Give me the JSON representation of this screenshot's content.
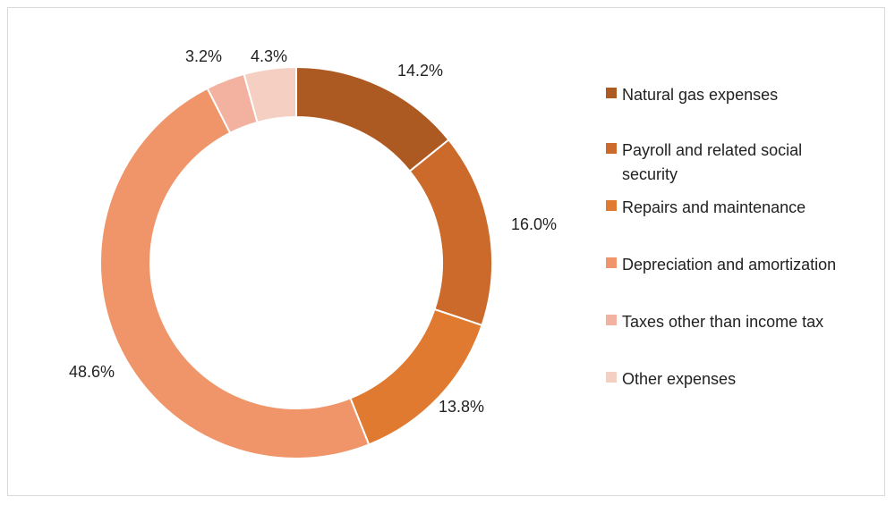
{
  "chart_data": {
    "type": "pie",
    "donut": true,
    "title": "",
    "legend_position": "right",
    "categories": [
      "Natural gas expenses",
      "Payroll and related social security",
      "Repairs and maintenance",
      "Depreciation and amortization",
      "Taxes other than income tax",
      "Other expenses"
    ],
    "values": [
      14.2,
      16.0,
      13.8,
      48.6,
      3.2,
      4.3
    ],
    "labels": [
      "14.2%",
      "16.0%",
      "13.8%",
      "48.6%",
      "3.2%",
      "4.3%"
    ],
    "colors": [
      "#AD5A22",
      "#CB6A2A",
      "#E07A30",
      "#F09469",
      "#F3B29F",
      "#F6CFC3"
    ]
  }
}
